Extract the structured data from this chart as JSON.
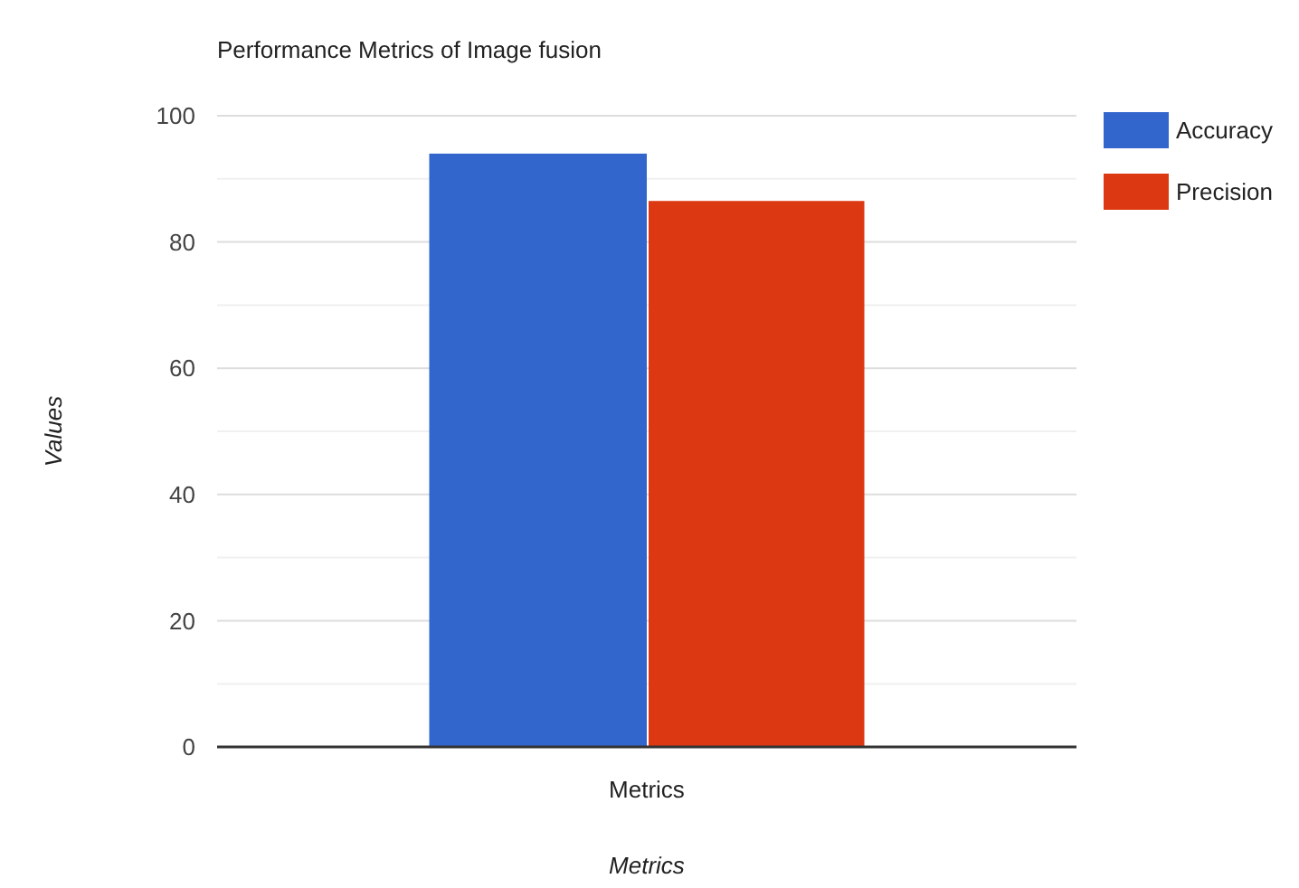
{
  "chart_data": {
    "type": "bar",
    "title": "Performance Metrics of Image fusion",
    "xlabel": "Metrics",
    "ylabel": "Values",
    "categories": [
      "Metrics"
    ],
    "series": [
      {
        "name": "Accuracy",
        "color": "#3366cc",
        "values": [
          94
        ]
      },
      {
        "name": "Precision",
        "color": "#dc3912",
        "values": [
          86.5
        ]
      }
    ],
    "ylim": [
      0,
      100
    ],
    "yticks": [
      0,
      {
        "value": 10,
        "label": null
      },
      20,
      {
        "value": 30,
        "label": null
      },
      40,
      {
        "value": 50,
        "label": null
      },
      60,
      {
        "value": 70,
        "label": null
      },
      80,
      {
        "value": 90,
        "label": null
      },
      100
    ],
    "grid": true,
    "legend": "right"
  }
}
